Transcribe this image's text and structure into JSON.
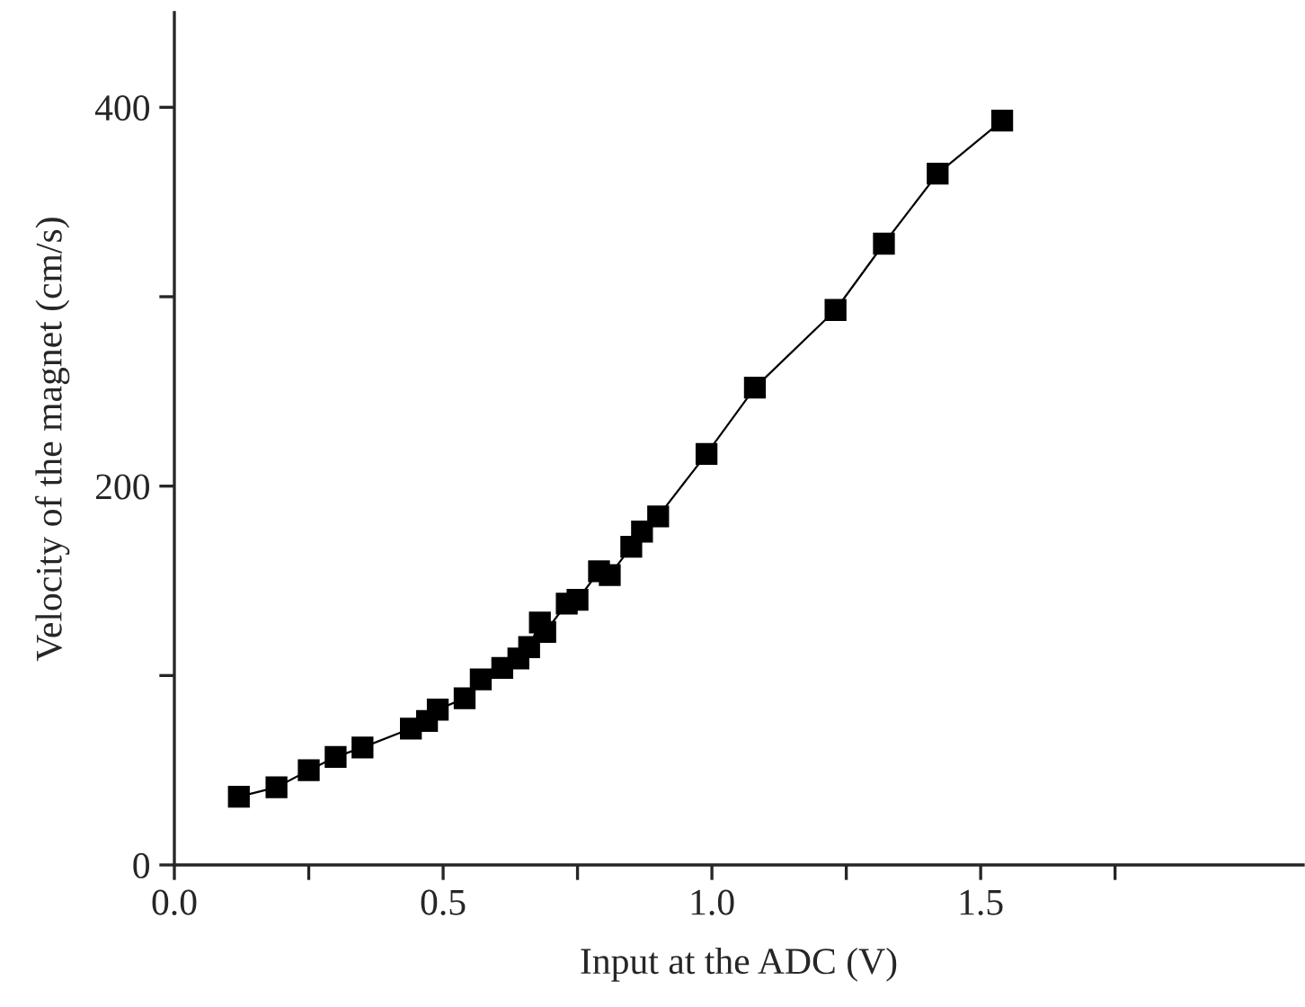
{
  "chart_data": {
    "type": "line",
    "xlabel": "Input at the ADC (V)",
    "ylabel": "Velocity of the magnet (cm/s)",
    "series": [
      {
        "color": "#000000",
        "x": [
          0.12,
          0.19,
          0.25,
          0.3,
          0.35,
          0.44,
          0.47,
          0.49,
          0.54,
          0.57,
          0.61,
          0.64,
          0.66,
          0.68,
          0.69,
          0.73,
          0.75,
          0.79,
          0.81,
          0.85,
          0.87,
          0.9,
          0.99,
          1.08,
          1.23,
          1.32,
          1.42,
          1.54
        ],
        "values": [
          36,
          41,
          50,
          57,
          62,
          72,
          76,
          82,
          88,
          98,
          104,
          109,
          115,
          128,
          123,
          138,
          140,
          155,
          153,
          168,
          176,
          184,
          217,
          252,
          293,
          328,
          365,
          393
        ]
      }
    ],
    "marker": "square",
    "line_style": "solid",
    "grid": false,
    "xlim": [
      0,
      2.1
    ],
    "ylim": [
      0,
      450
    ],
    "xticks": [
      {
        "value": 0,
        "label": "0.0"
      },
      {
        "value": 0.25,
        "label": null
      },
      0.5,
      {
        "value": 0.75,
        "label": null
      },
      {
        "value": 1,
        "label": "1.0"
      },
      {
        "value": 1.25,
        "label": null
      },
      1.5,
      {
        "value": 1.75,
        "label": null
      }
    ],
    "yticks": [
      0,
      {
        "value": 100,
        "label": null
      },
      200,
      {
        "value": 300,
        "label": null
      },
      400
    ]
  }
}
